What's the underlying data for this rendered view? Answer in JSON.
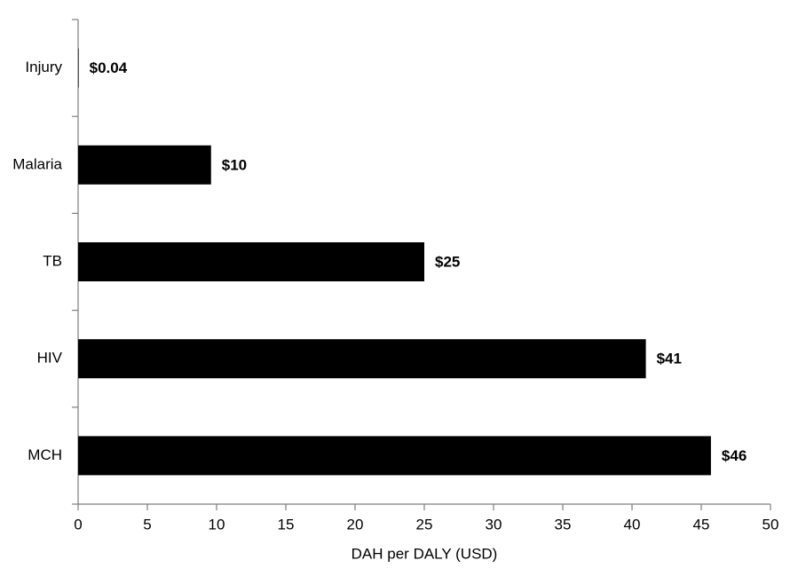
{
  "chart_data": {
    "type": "hbar",
    "x_label": "DAH per DALY (USD)",
    "categories": [
      "Injury",
      "Malaria",
      "TB",
      "HIV",
      "MCH"
    ],
    "values": [
      0.04,
      9.6,
      25.0,
      41.0,
      45.7
    ],
    "value_labels": [
      "$0.04",
      "$10",
      "$25",
      "$41",
      "$46"
    ],
    "color": "#000000",
    "xlim": [
      0,
      50
    ],
    "xticks": [
      0,
      5,
      10,
      15,
      20,
      25,
      30,
      35,
      40,
      45,
      50
    ]
  }
}
